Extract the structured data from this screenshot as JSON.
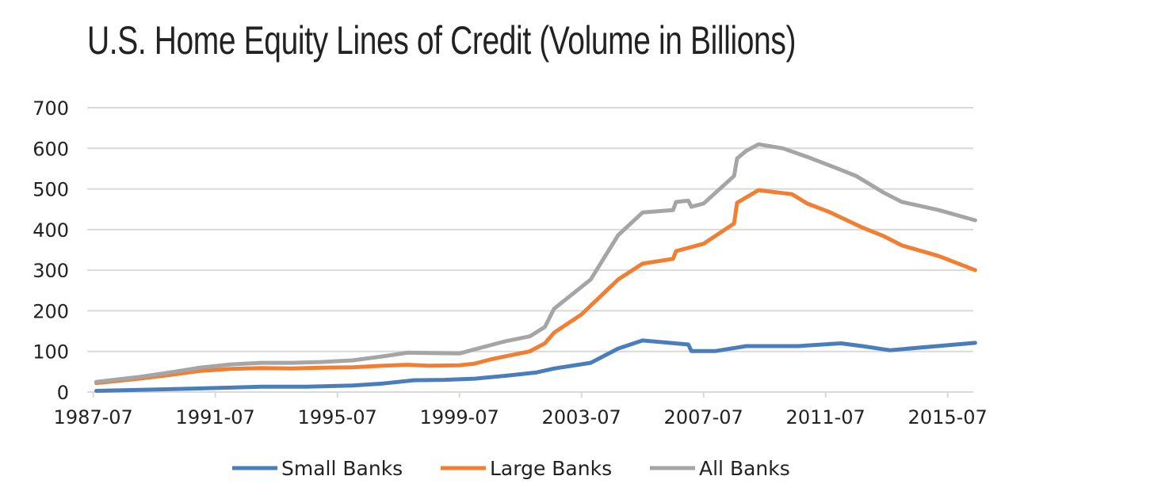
{
  "chart_data": {
    "type": "line",
    "title": "U.S. Home Equity Lines of Credit (Volume in Billions)",
    "xlabel": "",
    "ylabel": "",
    "ylim": [
      0,
      700
    ],
    "yticks": [
      0,
      100,
      200,
      300,
      400,
      500,
      600,
      700
    ],
    "xticks": [
      "1987-07",
      "1991-07",
      "1995-07",
      "1999-07",
      "2003-07",
      "2007-07",
      "2011-07",
      "2015-07"
    ],
    "grid": "horizontal",
    "legend": "bottom",
    "series": [
      {
        "name": "Small Banks",
        "color": "#4a7ebb",
        "points": [
          [
            1987.6,
            3
          ],
          [
            1990,
            7
          ],
          [
            1992,
            11
          ],
          [
            1993,
            13
          ],
          [
            1994.5,
            13
          ],
          [
            1996,
            16
          ],
          [
            1997,
            21
          ],
          [
            1998,
            29
          ],
          [
            1999,
            30
          ],
          [
            2000,
            33
          ],
          [
            2001,
            40
          ],
          [
            2002,
            48
          ],
          [
            2002.6,
            58
          ],
          [
            2003.8,
            72
          ],
          [
            2004.7,
            107
          ],
          [
            2005.5,
            127
          ],
          [
            2006.1,
            123
          ],
          [
            2007.0,
            117
          ],
          [
            2007.1,
            101
          ],
          [
            2007.9,
            101
          ],
          [
            2008.9,
            113
          ],
          [
            2010.6,
            113
          ],
          [
            2012.0,
            120
          ],
          [
            2012.7,
            113
          ],
          [
            2013.6,
            103
          ],
          [
            2016.4,
            121
          ]
        ]
      },
      {
        "name": "Large Banks",
        "color": "#f07f33",
        "points": [
          [
            1987.6,
            22
          ],
          [
            1989,
            33
          ],
          [
            1990,
            42
          ],
          [
            1991,
            52
          ],
          [
            1992,
            57
          ],
          [
            1993,
            59
          ],
          [
            1994,
            58
          ],
          [
            1995,
            60
          ],
          [
            1996,
            61
          ],
          [
            1997,
            65
          ],
          [
            1997.8,
            67
          ],
          [
            1998.5,
            65
          ],
          [
            1999.5,
            66
          ],
          [
            2000,
            70
          ],
          [
            2000.5,
            80
          ],
          [
            2001,
            88
          ],
          [
            2001.8,
            100
          ],
          [
            2002.3,
            120
          ],
          [
            2002.6,
            146
          ],
          [
            2003.5,
            191
          ],
          [
            2004.7,
            277
          ],
          [
            2005.5,
            316
          ],
          [
            2006.5,
            328
          ],
          [
            2006.6,
            347
          ],
          [
            2007.5,
            365
          ],
          [
            2008.5,
            415
          ],
          [
            2008.6,
            466
          ],
          [
            2009.3,
            497
          ],
          [
            2010.4,
            487
          ],
          [
            2010.9,
            464
          ],
          [
            2011.6,
            444
          ],
          [
            2012.7,
            405
          ],
          [
            2013.4,
            384
          ],
          [
            2014.0,
            361
          ],
          [
            2015.2,
            335
          ],
          [
            2016.4,
            300
          ]
        ]
      },
      {
        "name": "All Banks",
        "color": "#a5a5a5",
        "points": [
          [
            1987.6,
            25
          ],
          [
            1989,
            37
          ],
          [
            1990,
            48
          ],
          [
            1991,
            60
          ],
          [
            1992,
            68
          ],
          [
            1993,
            72
          ],
          [
            1994,
            72
          ],
          [
            1995,
            74
          ],
          [
            1996,
            78
          ],
          [
            1997,
            88
          ],
          [
            1997.8,
            97
          ],
          [
            1998.5,
            96
          ],
          [
            1999.5,
            95
          ],
          [
            2000,
            105
          ],
          [
            2000.5,
            115
          ],
          [
            2001,
            125
          ],
          [
            2001.8,
            137
          ],
          [
            2002.3,
            160
          ],
          [
            2002.6,
            205
          ],
          [
            2003.8,
            277
          ],
          [
            2004.7,
            386
          ],
          [
            2005.5,
            442
          ],
          [
            2006.5,
            448
          ],
          [
            2006.6,
            468
          ],
          [
            2007.0,
            471
          ],
          [
            2007.1,
            456
          ],
          [
            2007.5,
            464
          ],
          [
            2008.5,
            532
          ],
          [
            2008.6,
            575
          ],
          [
            2008.9,
            594
          ],
          [
            2009.3,
            610
          ],
          [
            2010.1,
            600
          ],
          [
            2010.9,
            579
          ],
          [
            2011.9,
            550
          ],
          [
            2012.5,
            532
          ],
          [
            2013.4,
            491
          ],
          [
            2014.0,
            468
          ],
          [
            2015.2,
            448
          ],
          [
            2016.4,
            423
          ]
        ]
      }
    ]
  }
}
